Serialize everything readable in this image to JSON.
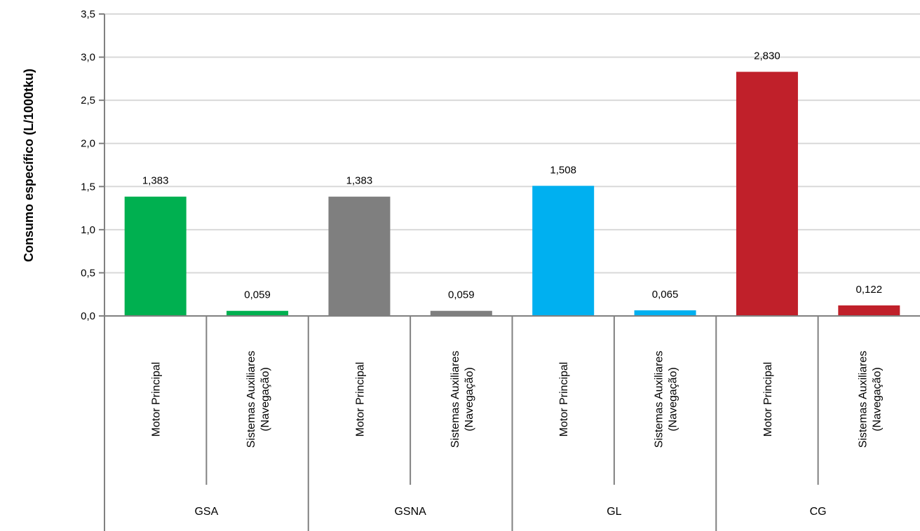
{
  "chart_data": {
    "type": "bar",
    "ylabel": "Consumo específico (L/1000tku)",
    "ylim": [
      0,
      3.5
    ],
    "ytick_labels": [
      "0,0",
      "0,5",
      "1,0",
      "1,5",
      "2,0",
      "2,5",
      "3,0",
      "3,5"
    ],
    "grid": true,
    "groups": [
      {
        "name": "GSA",
        "color": "#00b050",
        "bars": [
          {
            "category": "Motor Principal",
            "value": 1.383,
            "label": "1,383"
          },
          {
            "category": "Sistemas Auxiliares (Navegação)",
            "value": 0.059,
            "label": "0,059"
          }
        ]
      },
      {
        "name": "GSNA",
        "color": "#7f7f7f",
        "bars": [
          {
            "category": "Motor Principal",
            "value": 1.383,
            "label": "1,383"
          },
          {
            "category": "Sistemas Auxiliares (Navegação)",
            "value": 0.059,
            "label": "0,059"
          }
        ]
      },
      {
        "name": "GL",
        "color": "#00b0f0",
        "bars": [
          {
            "category": "Motor Principal",
            "value": 1.508,
            "label": "1,508"
          },
          {
            "category": "Sistemas Auxiliares (Navegação)",
            "value": 0.065,
            "label": "0,065"
          }
        ]
      },
      {
        "name": "CG",
        "color": "#c0202a",
        "bars": [
          {
            "category": "Motor Principal",
            "value": 2.83,
            "label": "2,830"
          },
          {
            "category": "Sistemas Auxiliares (Navegação)",
            "value": 0.122,
            "label": "0,122"
          }
        ]
      }
    ]
  }
}
